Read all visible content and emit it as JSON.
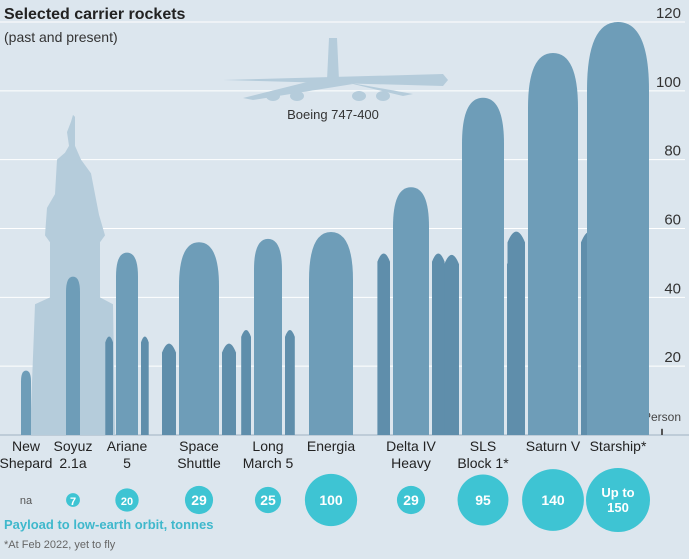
{
  "title": "Selected carrier rockets",
  "subtitle": "(past and present)",
  "colors": {
    "rocket": "#6e9db8",
    "rocket_dark": "#5f8eab",
    "landmark": "#b5ccdb",
    "bubble": "#3ec4d3",
    "legend": "#3fb8cc",
    "background": "#dce6ee",
    "grid": "#ffffff"
  },
  "chart_data": {
    "type": "bar",
    "title": "Selected carrier rockets",
    "subtitle": "(past and present)",
    "ylim": [
      0,
      120
    ],
    "yticks": [
      20,
      40,
      60,
      80,
      100,
      120
    ],
    "grid": true,
    "categories": [
      "New Shepard",
      "Soyuz 2.1a",
      "Ariane 5",
      "Space Shuttle",
      "Long March 5",
      "Energia",
      "Delta IV Heavy",
      "SLS Block 1*",
      "Saturn V",
      "Starship*"
    ],
    "labels": [
      [
        "New",
        "Shepard"
      ],
      [
        "Soyuz",
        "2.1a"
      ],
      [
        "Ariane",
        "5"
      ],
      [
        "Space",
        "Shuttle"
      ],
      [
        "Long",
        "March 5"
      ],
      [
        "Energia"
      ],
      [
        "Delta IV",
        "Heavy"
      ],
      [
        "SLS",
        "Block 1*"
      ],
      [
        "Saturn V"
      ],
      [
        "Starship*"
      ]
    ],
    "series": [
      {
        "values": [
          18.7,
          46,
          53,
          56,
          57,
          59,
          72,
          98,
          111,
          120
        ]
      }
    ],
    "payload": {
      "values": [
        null,
        7,
        20,
        29,
        25,
        100,
        29,
        95,
        140,
        150
      ],
      "labels": [
        "na",
        "7",
        "20",
        "29",
        "25",
        "100",
        "29",
        "95",
        "140",
        "Up to 150"
      ]
    },
    "references": [
      {
        "name": "Boeing 747-400",
        "label": "Boeing 747-400",
        "type": "aircraft"
      },
      {
        "name": "Statue of Liberty",
        "type": "silhouette",
        "height": 93
      },
      {
        "name": "Person",
        "label": "Person",
        "height": 1.8
      }
    ]
  },
  "legend": {
    "payload_label": "Payload to low-earth orbit, tonnes"
  },
  "footnote": "*At Feb 2022, yet to fly"
}
